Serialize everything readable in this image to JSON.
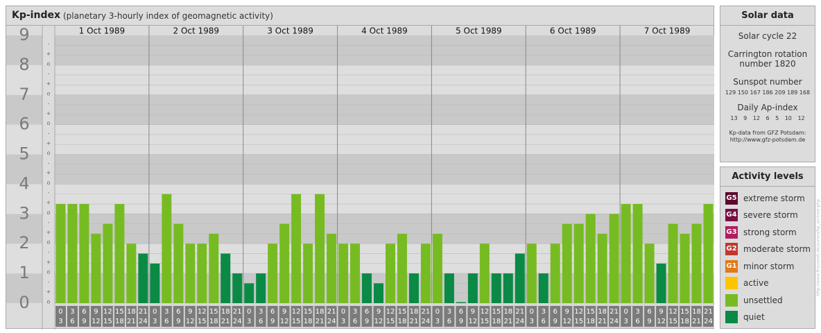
{
  "header": {
    "title": "Kp-index",
    "subtitle": "(planetary 3-hourly index of geomagnetic activity)"
  },
  "chart_data": {
    "type": "bar",
    "title": "Kp-index",
    "subtitle": "(planetary 3-hourly index of geomagnetic activity)",
    "ylim": [
      0,
      9
    ],
    "y_ticks": [
      "0",
      "1",
      "2",
      "3",
      "4",
      "5",
      "6",
      "7",
      "8",
      "9"
    ],
    "minor_tick_labels": [
      "o",
      "+",
      "-"
    ],
    "days": [
      "1 Oct 1989",
      "2 Oct 1989",
      "3 Oct 1989",
      "4 Oct 1989",
      "5 Oct 1989",
      "6 Oct 1989",
      "7 Oct 1989"
    ],
    "slot_labels": [
      [
        "0",
        "3"
      ],
      [
        "3",
        "6"
      ],
      [
        "6",
        "9"
      ],
      [
        "9",
        "12"
      ],
      [
        "12",
        "15"
      ],
      [
        "15",
        "18"
      ],
      [
        "18",
        "21"
      ],
      [
        "21",
        "24"
      ]
    ],
    "values": [
      [
        3.333,
        3.333,
        3.333,
        2.333,
        2.667,
        3.333,
        2.0,
        1.667
      ],
      [
        1.333,
        3.667,
        2.667,
        2.0,
        2.0,
        2.333,
        1.667,
        1.0
      ],
      [
        0.667,
        1.0,
        2.0,
        2.667,
        3.667,
        2.0,
        3.667,
        2.333
      ],
      [
        2.0,
        2.0,
        1.0,
        0.667,
        2.0,
        2.333,
        1.0,
        2.0
      ],
      [
        2.333,
        1.0,
        0.0,
        1.0,
        2.0,
        1.0,
        1.0,
        1.667
      ],
      [
        2.0,
        1.0,
        2.0,
        2.667,
        2.667,
        3.0,
        2.333,
        3.0
      ],
      [
        3.333,
        3.333,
        2.0,
        1.333,
        2.667,
        2.333,
        2.667,
        3.333
      ]
    ],
    "grid": true,
    "colors": {
      "quiet": "#0a8a45",
      "unsettled": "#77bb22",
      "active": "#ffc400"
    }
  },
  "solar": {
    "title": "Solar data",
    "cycle": "Solar cycle 22",
    "carrington_line1": "Carrington rotation",
    "carrington_line2": "number 1820",
    "sunspot_label": "Sunspot number",
    "sunspot_values": "129 150 167 186 209 189 168",
    "ap_label": "Daily Ap-index",
    "ap_values": "13   9   12   6   5   10   12",
    "source_line1": "Kp-data from GFZ Potsdam:",
    "source_line2": "http://www.gfz-potsdam.de"
  },
  "activity": {
    "title": "Activity levels",
    "levels": [
      {
        "badge": "G5",
        "label": "extreme storm",
        "color": "#5c0a2e"
      },
      {
        "badge": "G4",
        "label": "severe storm",
        "color": "#7a0f44"
      },
      {
        "badge": "G3",
        "label": "strong storm",
        "color": "#b01e5e"
      },
      {
        "badge": "G2",
        "label": "moderate storm",
        "color": "#c0392b"
      },
      {
        "badge": "G1",
        "label": "minor storm",
        "color": "#e07b17"
      },
      {
        "badge": "",
        "label": "active",
        "color": "#ffc400"
      },
      {
        "badge": "",
        "label": "unsettled",
        "color": "#77bb22"
      },
      {
        "badge": "",
        "label": "quiet",
        "color": "#0a8a45"
      }
    ]
  },
  "credit": "http://www.theusnet.de/aurora/kp_archive.php"
}
